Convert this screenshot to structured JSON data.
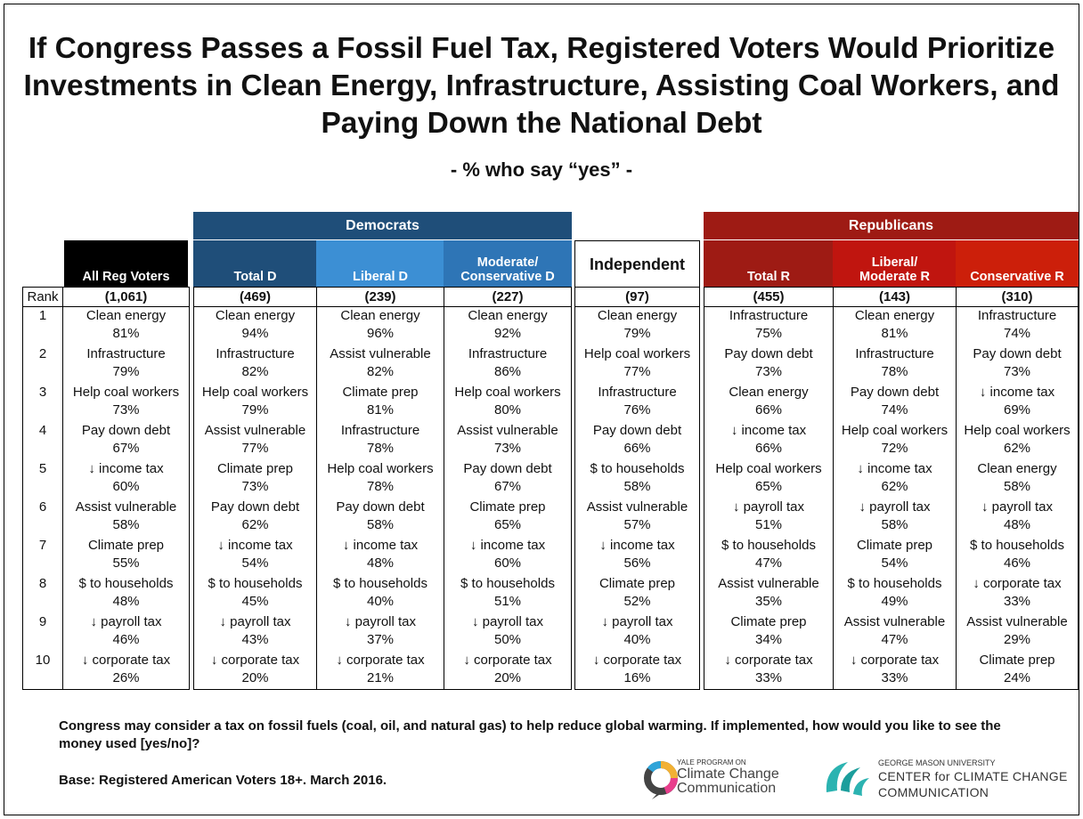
{
  "title": "If Congress Passes a Fossil Fuel Tax, Registered Voters Would Prioritize Investments in Clean Energy, Infrastructure, Assisting Coal Workers, and Paying Down the National Debt",
  "subtitle": "- % who say “yes” -",
  "table": {
    "rank_header": "Rank",
    "groups": [
      "Democrats",
      "Republicans"
    ],
    "columns": [
      {
        "header": "All Reg Voters",
        "n": "(1,061)"
      },
      {
        "header": "Total D",
        "n": "(469)"
      },
      {
        "header": "Liberal D",
        "n": "(239)"
      },
      {
        "header": "Moderate/\nConservative D",
        "n": "(227)"
      },
      {
        "header": "Independent",
        "n": "(97)"
      },
      {
        "header": "Total R",
        "n": "(455)"
      },
      {
        "header": "Liberal/\nModerate R",
        "n": "(143)"
      },
      {
        "header": "Conservative R",
        "n": "(310)"
      }
    ],
    "rows": [
      {
        "rank": 1,
        "cells": [
          {
            "item": "Clean energy",
            "pct": "81%"
          },
          {
            "item": "Clean energy",
            "pct": "94%"
          },
          {
            "item": "Clean energy",
            "pct": "96%"
          },
          {
            "item": "Clean energy",
            "pct": "92%"
          },
          {
            "item": "Clean energy",
            "pct": "79%"
          },
          {
            "item": "Infrastructure",
            "pct": "75%"
          },
          {
            "item": "Clean energy",
            "pct": "81%"
          },
          {
            "item": "Infrastructure",
            "pct": "74%"
          }
        ]
      },
      {
        "rank": 2,
        "cells": [
          {
            "item": "Infrastructure",
            "pct": "79%"
          },
          {
            "item": "Infrastructure",
            "pct": "82%"
          },
          {
            "item": "Assist vulnerable",
            "pct": "82%"
          },
          {
            "item": "Infrastructure",
            "pct": "86%"
          },
          {
            "item": "Help coal workers",
            "pct": "77%"
          },
          {
            "item": "Pay down debt",
            "pct": "73%"
          },
          {
            "item": "Infrastructure",
            "pct": "78%"
          },
          {
            "item": "Pay down debt",
            "pct": "73%"
          }
        ]
      },
      {
        "rank": 3,
        "cells": [
          {
            "item": "Help coal workers",
            "pct": "73%"
          },
          {
            "item": "Help coal workers",
            "pct": "79%"
          },
          {
            "item": "Climate prep",
            "pct": "81%"
          },
          {
            "item": "Help coal workers",
            "pct": "80%"
          },
          {
            "item": "Infrastructure",
            "pct": "76%"
          },
          {
            "item": "Clean energy",
            "pct": "66%"
          },
          {
            "item": "Pay down debt",
            "pct": "74%"
          },
          {
            "item": "↓ income tax",
            "pct": "69%"
          }
        ]
      },
      {
        "rank": 4,
        "cells": [
          {
            "item": "Pay down debt",
            "pct": "67%"
          },
          {
            "item": "Assist vulnerable",
            "pct": "77%"
          },
          {
            "item": "Infrastructure",
            "pct": "78%"
          },
          {
            "item": "Assist vulnerable",
            "pct": "73%"
          },
          {
            "item": "Pay down debt",
            "pct": "66%"
          },
          {
            "item": "↓ income tax",
            "pct": "66%"
          },
          {
            "item": "Help coal workers",
            "pct": "72%"
          },
          {
            "item": "Help coal workers",
            "pct": "62%"
          }
        ]
      },
      {
        "rank": 5,
        "cells": [
          {
            "item": "↓ income tax",
            "pct": "60%"
          },
          {
            "item": "Climate prep",
            "pct": "73%"
          },
          {
            "item": "Help coal workers",
            "pct": "78%"
          },
          {
            "item": "Pay down debt",
            "pct": "67%"
          },
          {
            "item": "$ to households",
            "pct": "58%"
          },
          {
            "item": "Help coal workers",
            "pct": "65%"
          },
          {
            "item": "↓ income tax",
            "pct": "62%"
          },
          {
            "item": "Clean energy",
            "pct": "58%"
          }
        ]
      },
      {
        "rank": 6,
        "cells": [
          {
            "item": "Assist vulnerable",
            "pct": "58%"
          },
          {
            "item": "Pay down debt",
            "pct": "62%"
          },
          {
            "item": "Pay down debt",
            "pct": "58%"
          },
          {
            "item": "Climate prep",
            "pct": "65%"
          },
          {
            "item": "Assist vulnerable",
            "pct": "57%"
          },
          {
            "item": "↓ payroll tax",
            "pct": "51%"
          },
          {
            "item": "↓ payroll tax",
            "pct": "58%"
          },
          {
            "item": "↓ payroll tax",
            "pct": "48%"
          }
        ]
      },
      {
        "rank": 7,
        "cells": [
          {
            "item": "Climate prep",
            "pct": "55%"
          },
          {
            "item": "↓ income tax",
            "pct": "54%"
          },
          {
            "item": "↓ income tax",
            "pct": "48%"
          },
          {
            "item": "↓ income tax",
            "pct": "60%"
          },
          {
            "item": "↓ income tax",
            "pct": "56%"
          },
          {
            "item": "$ to households",
            "pct": "47%"
          },
          {
            "item": "Climate prep",
            "pct": "54%"
          },
          {
            "item": "$ to households",
            "pct": "46%"
          }
        ]
      },
      {
        "rank": 8,
        "cells": [
          {
            "item": "$ to households",
            "pct": "48%"
          },
          {
            "item": "$ to households",
            "pct": "45%"
          },
          {
            "item": "$ to households",
            "pct": "40%"
          },
          {
            "item": "$ to households",
            "pct": "51%"
          },
          {
            "item": "Climate prep",
            "pct": "52%"
          },
          {
            "item": "Assist vulnerable",
            "pct": "35%"
          },
          {
            "item": "$ to households",
            "pct": "49%"
          },
          {
            "item": "↓ corporate tax",
            "pct": "33%"
          }
        ]
      },
      {
        "rank": 9,
        "cells": [
          {
            "item": "↓ payroll tax",
            "pct": "46%"
          },
          {
            "item": "↓ payroll tax",
            "pct": "43%"
          },
          {
            "item": "↓ payroll tax",
            "pct": "37%"
          },
          {
            "item": "↓ payroll tax",
            "pct": "50%"
          },
          {
            "item": "↓ payroll tax",
            "pct": "40%"
          },
          {
            "item": "Climate prep",
            "pct": "34%"
          },
          {
            "item": "Assist vulnerable",
            "pct": "47%"
          },
          {
            "item": "Assist vulnerable",
            "pct": "29%"
          }
        ]
      },
      {
        "rank": 10,
        "cells": [
          {
            "item": "↓ corporate tax",
            "pct": "26%"
          },
          {
            "item": "↓ corporate tax",
            "pct": "20%"
          },
          {
            "item": "↓ corporate tax",
            "pct": "21%"
          },
          {
            "item": "↓ corporate tax",
            "pct": "20%"
          },
          {
            "item": "↓ corporate tax",
            "pct": "16%"
          },
          {
            "item": "↓ corporate tax",
            "pct": "33%"
          },
          {
            "item": "↓ corporate tax",
            "pct": "33%"
          },
          {
            "item": "Climate prep",
            "pct": "24%"
          }
        ]
      }
    ]
  },
  "footer": {
    "question": "Congress may consider a tax on fossil fuels (coal, oil, and natural gas) to help reduce global warming. If implemented, how would you like to see the money used [yes/no]?",
    "base": "Base: Registered American Voters 18+. March 2016.",
    "logo_yale": [
      "YALE PROGRAM ON",
      "Climate Change",
      "Communication"
    ],
    "logo_gmu": [
      "GEORGE MASON UNIVERSITY",
      "CENTER for CLIMATE CHANGE",
      "COMMUNICATION"
    ]
  }
}
